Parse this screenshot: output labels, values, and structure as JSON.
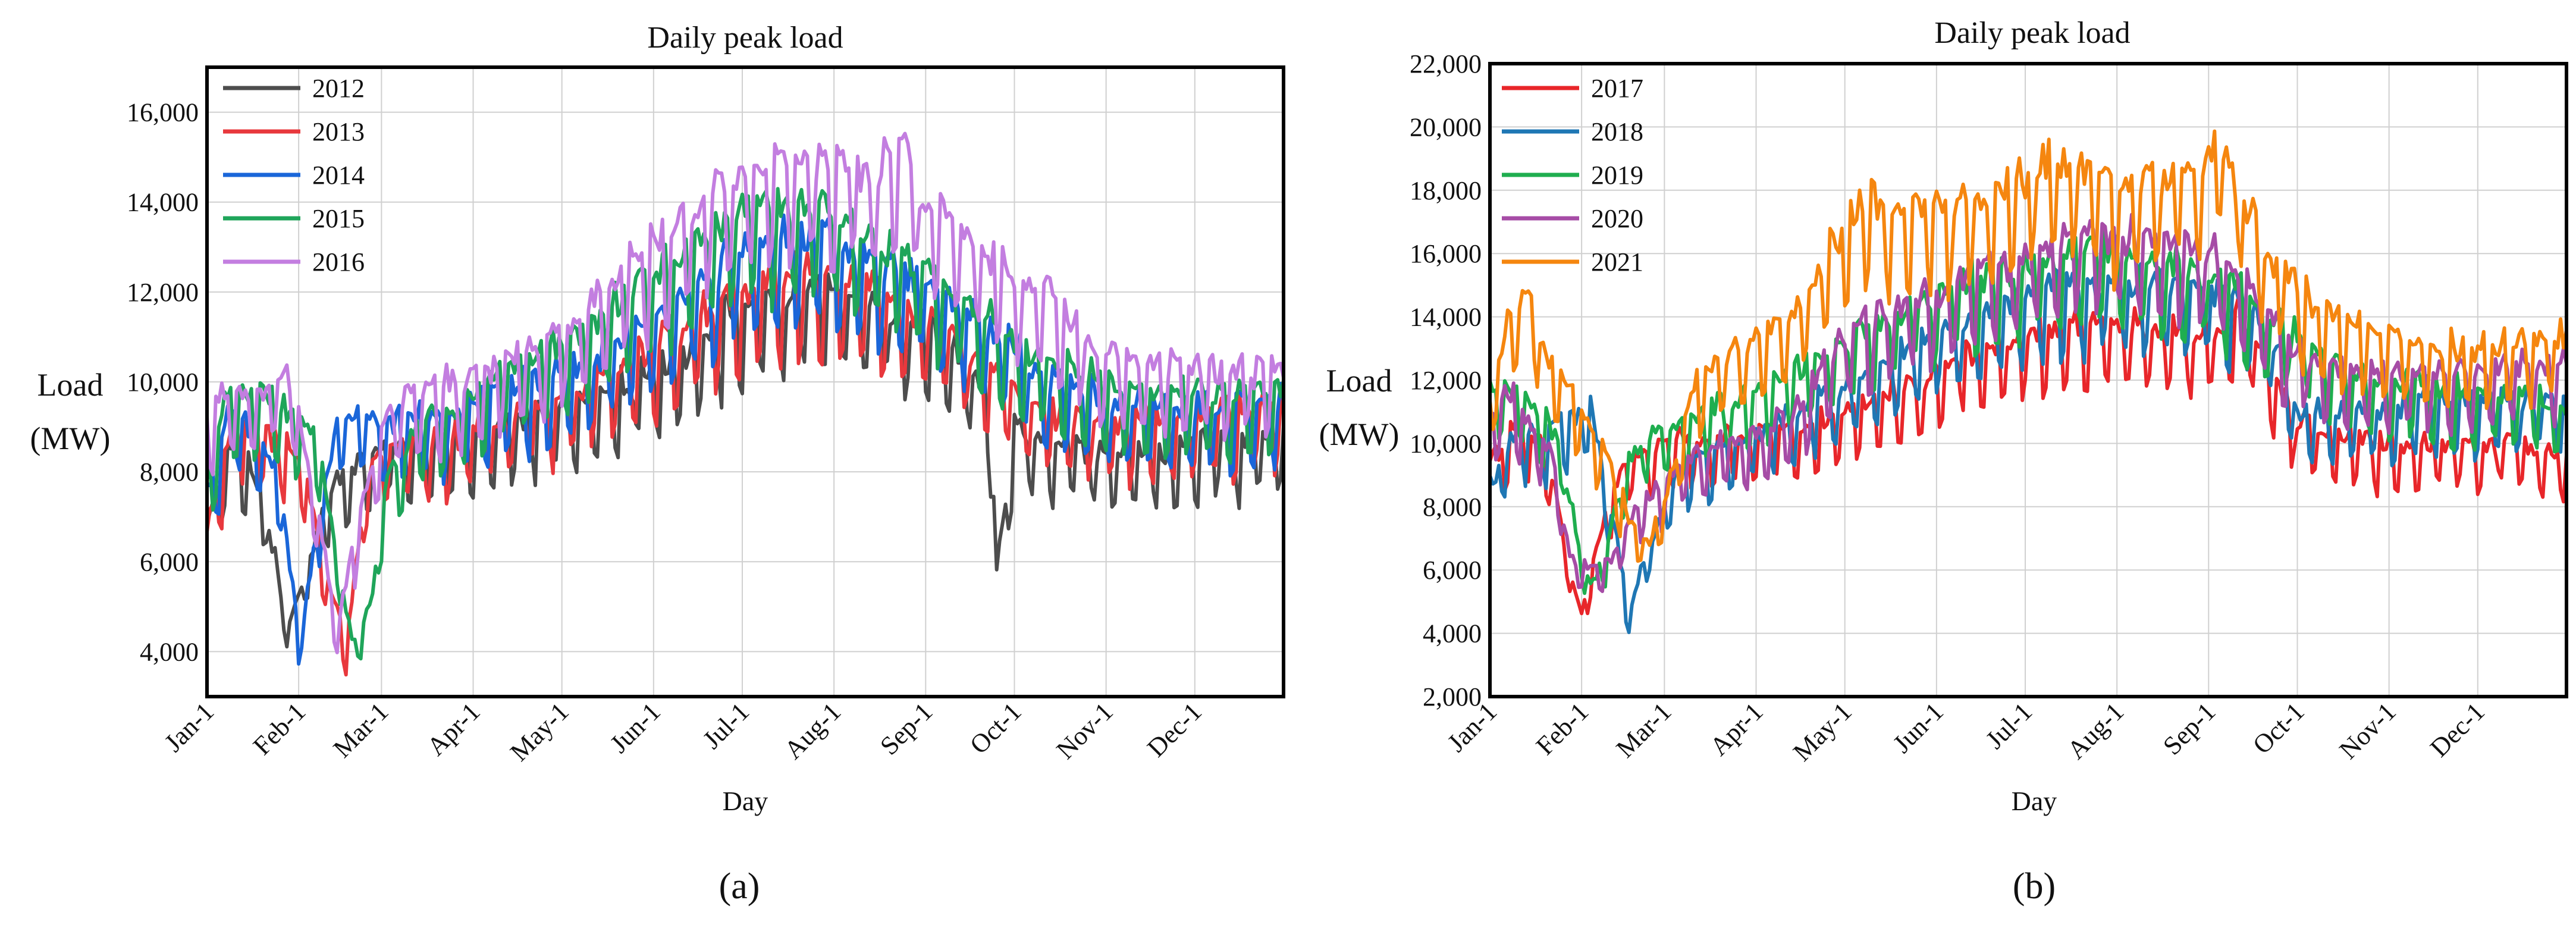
{
  "figure": {
    "panel_labels": [
      "(a)",
      "(b)"
    ]
  },
  "chart_data": [
    {
      "type": "line",
      "title": "Daily peak load",
      "xlabel": "Day",
      "ylabel_line1": "Load",
      "ylabel_line2": "(MW)",
      "x_unit": "day of year",
      "xlim": [
        1,
        365
      ],
      "ylim": [
        3000,
        17000
      ],
      "yticks": [
        4000,
        6000,
        8000,
        10000,
        12000,
        14000,
        16000
      ],
      "ytick_labels": [
        "4,000",
        "6,000",
        "8,000",
        "10,000",
        "12,000",
        "14,000",
        "16,000"
      ],
      "xtick_days": [
        1,
        32,
        60,
        91,
        121,
        152,
        182,
        213,
        244,
        274,
        305,
        335
      ],
      "xtick_labels": [
        "Jan-1",
        "Feb-1",
        "Mar-1",
        "Apr-1",
        "May-1",
        "Jun-1",
        "Jul-1",
        "Aug-1",
        "Sep-1",
        "Oct-1",
        "Nov-1",
        "Dec-1"
      ],
      "grid": true,
      "legend_position": "top-left",
      "series": [
        {
          "name": "2012",
          "color": "#4d4d4d",
          "x": [
            1,
            10,
            20,
            28,
            34,
            40,
            47,
            55,
            65,
            80,
            91,
            100,
            115,
            130,
            145,
            160,
            172,
            182,
            195,
            205,
            213,
            225,
            244,
            255,
            265,
            268,
            274,
            285,
            300,
            315,
            330,
            345,
            365
          ],
          "y": [
            6600,
            8500,
            7200,
            4400,
            5500,
            6800,
            7800,
            8000,
            8300,
            8400,
            8500,
            8700,
            9000,
            9300,
            9600,
            10200,
            10800,
            11300,
            11500,
            11600,
            11600,
            11300,
            10800,
            10200,
            9600,
            5700,
            8600,
            8300,
            8200,
            8100,
            8200,
            8400,
            8500
          ]
        },
        {
          "name": "2013",
          "color": "#e8383d",
          "x": [
            1,
            10,
            20,
            28,
            35,
            42,
            48,
            55,
            65,
            80,
            91,
            100,
            115,
            130,
            145,
            160,
            172,
            182,
            195,
            205,
            213,
            225,
            244,
            255,
            265,
            274,
            285,
            300,
            315,
            330,
            345,
            365
          ],
          "y": [
            6500,
            8800,
            8600,
            8300,
            7400,
            5500,
            4000,
            7800,
            8300,
            8400,
            8600,
            8800,
            9100,
            9600,
            10100,
            10700,
            11200,
            11600,
            11900,
            12000,
            12000,
            11600,
            11100,
            10600,
            10000,
            9400,
            9000,
            8900,
            8800,
            8900,
            9000,
            9100
          ]
        },
        {
          "name": "2014",
          "color": "#1a66d9",
          "x": [
            1,
            8,
            18,
            26,
            32,
            38,
            45,
            52,
            60,
            75,
            91,
            100,
            115,
            130,
            145,
            160,
            172,
            182,
            195,
            205,
            213,
            225,
            244,
            255,
            265,
            274,
            285,
            300,
            315,
            330,
            345,
            365
          ],
          "y": [
            7200,
            8900,
            8700,
            7400,
            4100,
            6300,
            8800,
            9000,
            8800,
            8900,
            9200,
            9400,
            9700,
            10100,
            10700,
            11400,
            12000,
            12500,
            12700,
            12800,
            12700,
            12300,
            11800,
            11300,
            10800,
            10300,
            9800,
            9400,
            9200,
            9100,
            9100,
            9200
          ]
        },
        {
          "name": "2015",
          "color": "#1fa55a",
          "x": [
            1,
            8,
            18,
            30,
            38,
            45,
            50,
            56,
            62,
            75,
            91,
            100,
            115,
            130,
            145,
            160,
            172,
            182,
            195,
            205,
            213,
            225,
            244,
            255,
            265,
            274,
            285,
            300,
            315,
            330,
            345,
            365
          ],
          "y": [
            7400,
            9300,
            9500,
            9000,
            8600,
            6000,
            4100,
            4800,
            7600,
            8800,
            9400,
            9800,
            10300,
            10900,
            11600,
            12400,
            12900,
            13300,
            13400,
            13300,
            13100,
            12700,
            12100,
            11500,
            11000,
            10500,
            10000,
            9700,
            9500,
            9400,
            9400,
            9500
          ]
        },
        {
          "name": "2016",
          "color": "#c37ee0",
          "x": [
            1,
            8,
            18,
            30,
            38,
            45,
            52,
            60,
            75,
            91,
            100,
            115,
            130,
            145,
            160,
            172,
            182,
            195,
            205,
            213,
            225,
            235,
            244,
            255,
            265,
            274,
            285,
            300,
            315,
            330,
            345,
            365
          ],
          "y": [
            8800,
            9500,
            9300,
            9800,
            7000,
            4300,
            6600,
            8900,
            9500,
            9700,
            10000,
            10500,
            11300,
            12200,
            13000,
            13700,
            14000,
            14300,
            14500,
            14400,
            14100,
            14600,
            13600,
            13000,
            12500,
            11600,
            11600,
            10400,
            10100,
            10000,
            9900,
            9900
          ]
        }
      ]
    },
    {
      "type": "line",
      "title": "Daily peak load",
      "xlabel": "Day",
      "ylabel_line1": "Load",
      "ylabel_line2": "(MW)",
      "x_unit": "day of year",
      "xlim": [
        1,
        365
      ],
      "ylim": [
        2000,
        22000
      ],
      "yticks": [
        2000,
        4000,
        6000,
        8000,
        10000,
        12000,
        14000,
        16000,
        18000,
        20000,
        22000
      ],
      "ytick_labels": [
        "2,000",
        "4,000",
        "6,000",
        "8,000",
        "10,000",
        "12,000",
        "14,000",
        "16,000",
        "18,000",
        "20,000",
        "22,000"
      ],
      "xtick_days": [
        1,
        32,
        60,
        91,
        121,
        152,
        182,
        213,
        244,
        274,
        305,
        335
      ],
      "xtick_labels": [
        "Jan-1",
        "Feb-1",
        "Mar-1",
        "Apr-1",
        "May-1",
        "Jun-1",
        "Jul-1",
        "Aug-1",
        "Sep-1",
        "Oct-1",
        "Nov-1",
        "Dec-1"
      ],
      "grid": true,
      "legend_position": "top-left",
      "series": [
        {
          "name": "2017",
          "color": "#e8262a",
          "x": [
            1,
            10,
            20,
            28,
            32,
            38,
            45,
            55,
            70,
            91,
            105,
            121,
            140,
            160,
            182,
            200,
            213,
            230,
            244,
            255,
            262,
            274,
            290,
            310,
            330,
            350,
            365
          ],
          "y": [
            9200,
            10100,
            9400,
            5700,
            4500,
            6800,
            8800,
            9500,
            9800,
            9900,
            10100,
            10600,
            11300,
            12300,
            12900,
            13200,
            13200,
            13100,
            12900,
            13600,
            12500,
            10300,
            9800,
            9600,
            9700,
            9700,
            9200
          ]
        },
        {
          "name": "2018",
          "color": "#1f77b4",
          "x": [
            1,
            10,
            20,
            28,
            35,
            42,
            48,
            55,
            65,
            80,
            91,
            105,
            121,
            140,
            160,
            182,
            200,
            213,
            230,
            244,
            255,
            268,
            274,
            290,
            310,
            330,
            350,
            365
          ],
          "y": [
            8400,
            10200,
            9800,
            10400,
            10800,
            7500,
            4600,
            6500,
            9000,
            9600,
            10000,
            10600,
            11400,
            12400,
            13400,
            14200,
            14500,
            14600,
            14500,
            14300,
            14000,
            12700,
            10600,
            10700,
            10800,
            11000,
            11000,
            10900
          ]
        },
        {
          "name": "2019",
          "color": "#1fae4f",
          "x": [
            1,
            10,
            20,
            25,
            30,
            35,
            40,
            48,
            55,
            70,
            91,
            105,
            121,
            140,
            160,
            182,
            200,
            213,
            230,
            244,
            255,
            274,
            290,
            310,
            330,
            350,
            365
          ],
          "y": [
            11300,
            11200,
            10600,
            9400,
            7000,
            5300,
            6300,
            9200,
            10000,
            10600,
            11200,
            11900,
            12800,
            13800,
            14600,
            15200,
            15400,
            15400,
            15100,
            14800,
            14400,
            12900,
            11900,
            11500,
            11300,
            11100,
            10600
          ]
        },
        {
          "name": "2020",
          "color": "#a64ca6",
          "x": [
            1,
            8,
            15,
            22,
            28,
            35,
            42,
            48,
            55,
            70,
            91,
            105,
            121,
            140,
            160,
            182,
            200,
            213,
            230,
            244,
            255,
            274,
            290,
            310,
            330,
            350,
            365
          ],
          "y": [
            10300,
            11200,
            10100,
            9400,
            6200,
            5900,
            6100,
            7300,
            8000,
            9300,
            9900,
            10700,
            13000,
            13800,
            14600,
            15400,
            16000,
            16100,
            15900,
            15500,
            14800,
            12300,
            11900,
            11800,
            11900,
            12000,
            12100
          ]
        },
        {
          "name": "2021",
          "color": "#f5860f",
          "x": [
            1,
            8,
            14,
            20,
            28,
            35,
            42,
            48,
            55,
            62,
            70,
            80,
            91,
            105,
            121,
            130,
            140,
            160,
            182,
            195,
            205,
            213,
            225,
            240,
            248,
            255,
            262,
            274,
            290,
            310,
            330,
            350,
            365
          ],
          "y": [
            10900,
            13600,
            14400,
            12300,
            11200,
            10200,
            9000,
            7400,
            6500,
            8600,
            11300,
            12300,
            12800,
            13600,
            16300,
            17100,
            16700,
            17000,
            17700,
            18300,
            17900,
            17300,
            17600,
            18200,
            18700,
            17400,
            15700,
            14300,
            13400,
            12800,
            12500,
            12700,
            12900
          ]
        }
      ]
    }
  ]
}
